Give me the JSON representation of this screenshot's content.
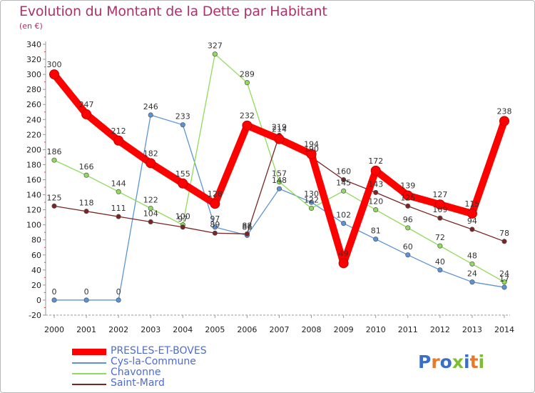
{
  "header": {
    "title": "Evolution du Montant de la Dette par Habitant",
    "unit": "(en €)"
  },
  "logo": {
    "text": "Proxiti",
    "colors": [
      "#3a6fc9",
      "#e8792b",
      "#3a6fc9",
      "#7bbf2e",
      "#3a6fc9",
      "#e8792b",
      "#7bbf2e"
    ]
  },
  "chart_data": {
    "type": "line",
    "title": "Evolution du Montant de la Dette par Habitant",
    "subtitle": "(en €)",
    "xlabel": "",
    "ylabel": "",
    "x": [
      "2000",
      "2001",
      "2002",
      "2003",
      "2004",
      "2005",
      "2006",
      "2007",
      "2008",
      "2009",
      "2010",
      "2011",
      "2012",
      "2013",
      "2014"
    ],
    "ylim": [
      -20,
      340
    ],
    "yticks": [
      -20,
      0,
      20,
      40,
      60,
      80,
      100,
      120,
      140,
      160,
      180,
      200,
      220,
      240,
      260,
      280,
      300,
      320,
      340
    ],
    "grid": false,
    "legend_position": "bottom-left",
    "series": [
      {
        "name": "PRESLES-ET-BOVES",
        "color": "#ff0000",
        "emphasis": true,
        "values": [
          300,
          247,
          212,
          182,
          155,
          128,
          232,
          214,
          194,
          49,
          172,
          139,
          127,
          115,
          238
        ],
        "labels": [
          "300",
          "247",
          "212",
          "182",
          "155",
          "128",
          "232",
          "214",
          "194",
          "49",
          "172",
          "139",
          "127",
          "115",
          "238"
        ]
      },
      {
        "name": "Cys-la-Commune",
        "color": "#5b94d6",
        "emphasis": false,
        "values": [
          0,
          0,
          0,
          246,
          233,
          97,
          86,
          148,
          130,
          102,
          81,
          60,
          40,
          24,
          17
        ],
        "labels": [
          "0",
          "0",
          "0",
          "246",
          "233",
          "97",
          "86",
          "148",
          "130",
          "102",
          "81",
          "60",
          "40",
          "24",
          "17"
        ]
      },
      {
        "name": "Chavonne",
        "color": "#8fdb5a",
        "emphasis": false,
        "values": [
          186,
          166,
          144,
          122,
          100,
          327,
          289,
          157,
          122,
          145,
          120,
          96,
          72,
          48,
          24
        ],
        "labels": [
          "186",
          "166",
          "144",
          "122",
          "100",
          "327",
          "289",
          "157",
          "122",
          "145",
          "120",
          "96",
          "72",
          "48",
          "24"
        ]
      },
      {
        "name": "Saint-Mard",
        "color": "#7a2424",
        "emphasis": false,
        "values": [
          125,
          118,
          111,
          104,
          97,
          89,
          88,
          219,
          190,
          160,
          143,
          125,
          109,
          94,
          78
        ],
        "labels": [
          "125",
          "118",
          "111",
          "104",
          "97",
          "89",
          "88",
          "219",
          "190",
          "160",
          "143",
          "125",
          "109",
          "94",
          "78"
        ]
      }
    ]
  }
}
